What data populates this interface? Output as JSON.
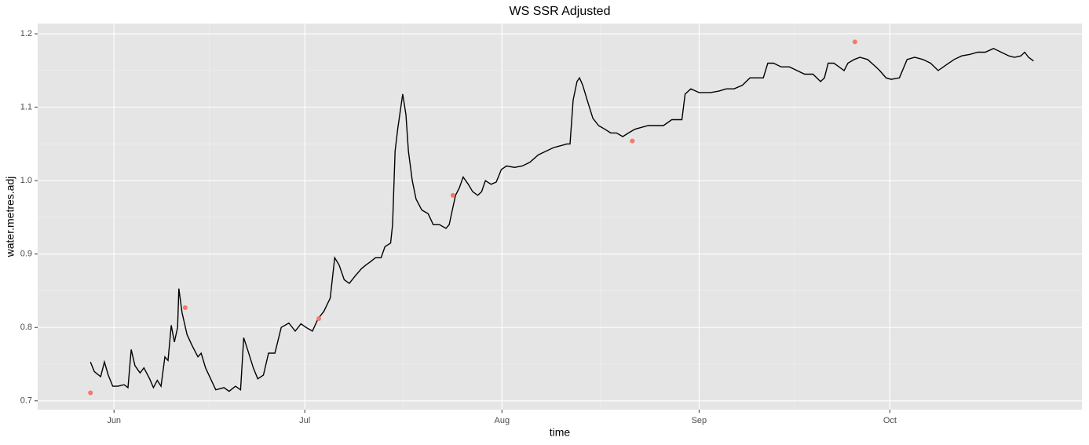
{
  "chart_data": {
    "type": "line",
    "title": "WS SSR Adjusted",
    "x_label": "time",
    "y_label": "water.metres.adj",
    "xlim": [
      -12,
      152.2
    ],
    "ylim": [
      0.688,
      1.214
    ],
    "xticks": [
      {
        "value": 0,
        "label": "Jun"
      },
      {
        "value": 30,
        "label": "Jul"
      },
      {
        "value": 61,
        "label": "Aug"
      },
      {
        "value": 92,
        "label": "Sep"
      },
      {
        "value": 122,
        "label": "Oct"
      }
    ],
    "yticks": [
      0.7,
      0.8,
      0.9,
      {
        "value": 1,
        "label": "1.0"
      },
      1.1,
      1.2
    ],
    "grid": true,
    "minor_grid": true,
    "background": "#e5e5e5",
    "series": [
      {
        "type": "line",
        "color": "#000000",
        "x": [
          -3.7,
          -3.1,
          -2.1,
          -1.5,
          -0.9,
          -0.2,
          0.6,
          1.6,
          2.2,
          2.7,
          3.3,
          4.1,
          4.7,
          5.6,
          6.2,
          6.8,
          7.4,
          8.0,
          8.5,
          9.0,
          9.5,
          10.0,
          10.2,
          10.7,
          11.5,
          12.3,
          13.2,
          13.7,
          14.4,
          15.2,
          16.0,
          17.3,
          18.1,
          19.1,
          19.9,
          20.4,
          21.0,
          21.9,
          22.6,
          23.5,
          24.3,
          25.3,
          26.3,
          27.5,
          28.5,
          29.4,
          30.2,
          31.2,
          32.1,
          33.0,
          34.0,
          34.7,
          35.4,
          36.2,
          37.0,
          37.9,
          38.9,
          39.6,
          40.4,
          41.1,
          42.0,
          42.6,
          43.5,
          43.8,
          44.2,
          44.6,
          45.1,
          45.4,
          45.9,
          46.3,
          46.9,
          47.5,
          48.4,
          49.4,
          50.2,
          51.2,
          52.2,
          52.7,
          53.2,
          53.7,
          54.3,
          54.9,
          55.7,
          56.4,
          57.2,
          57.8,
          58.4,
          59.3,
          60.1,
          60.9,
          61.7,
          63.0,
          64.2,
          65.4,
          66.7,
          67.9,
          69.1,
          70.4,
          71.2,
          71.7,
          72.2,
          72.8,
          73.2,
          73.7,
          74.4,
          75.3,
          76.2,
          77.2,
          78.1,
          79.0,
          80.0,
          80.9,
          81.9,
          82.7,
          84.0,
          85.2,
          86.4,
          87.7,
          89.3,
          89.8,
          90.7,
          92.0,
          93.8,
          95.1,
          96.3,
          97.5,
          98.8,
          100.0,
          101.2,
          102.1,
          102.8,
          103.7,
          104.9,
          106.2,
          107.4,
          108.6,
          109.9,
          111.1,
          111.7,
          112.3,
          113.2,
          114.0,
          114.8,
          115.4,
          116.4,
          117.3,
          118.5,
          119.8,
          120.4,
          121.4,
          122.2,
          123.5,
          124.7,
          125.9,
          127.2,
          128.4,
          129.6,
          130.9,
          132.1,
          133.3,
          134.6,
          135.8,
          137.0,
          138.3,
          139.5,
          140.7,
          141.6,
          142.6,
          143.2,
          143.8,
          144.6
        ],
        "values": [
          0.753,
          0.74,
          0.733,
          0.753,
          0.735,
          0.72,
          0.72,
          0.722,
          0.718,
          0.77,
          0.748,
          0.738,
          0.745,
          0.73,
          0.718,
          0.728,
          0.72,
          0.76,
          0.755,
          0.803,
          0.78,
          0.8,
          0.853,
          0.82,
          0.79,
          0.775,
          0.76,
          0.765,
          0.745,
          0.73,
          0.715,
          0.718,
          0.713,
          0.72,
          0.715,
          0.786,
          0.77,
          0.745,
          0.73,
          0.735,
          0.765,
          0.765,
          0.8,
          0.806,
          0.795,
          0.805,
          0.8,
          0.795,
          0.812,
          0.822,
          0.84,
          0.895,
          0.885,
          0.865,
          0.86,
          0.87,
          0.88,
          0.885,
          0.89,
          0.895,
          0.895,
          0.91,
          0.915,
          0.94,
          1.04,
          1.07,
          1.1,
          1.118,
          1.09,
          1.04,
          1.0,
          0.975,
          0.96,
          0.955,
          0.94,
          0.94,
          0.935,
          0.94,
          0.96,
          0.98,
          0.99,
          1.005,
          0.995,
          0.985,
          0.98,
          0.985,
          1.0,
          0.995,
          0.998,
          1.015,
          1.02,
          1.018,
          1.02,
          1.025,
          1.035,
          1.04,
          1.045,
          1.048,
          1.05,
          1.05,
          1.11,
          1.135,
          1.14,
          1.13,
          1.11,
          1.085,
          1.075,
          1.07,
          1.065,
          1.065,
          1.06,
          1.065,
          1.07,
          1.072,
          1.075,
          1.075,
          1.075,
          1.083,
          1.083,
          1.118,
          1.125,
          1.12,
          1.12,
          1.122,
          1.125,
          1.125,
          1.13,
          1.14,
          1.14,
          1.14,
          1.16,
          1.16,
          1.155,
          1.155,
          1.15,
          1.145,
          1.145,
          1.135,
          1.14,
          1.16,
          1.16,
          1.155,
          1.15,
          1.16,
          1.165,
          1.168,
          1.165,
          1.155,
          1.15,
          1.14,
          1.138,
          1.14,
          1.165,
          1.168,
          1.165,
          1.16,
          1.15,
          1.158,
          1.165,
          1.17,
          1.172,
          1.175,
          1.175,
          1.18,
          1.175,
          1.17,
          1.168,
          1.17,
          1.175,
          1.168,
          1.163
        ]
      },
      {
        "type": "scatter",
        "color": "#f8766d",
        "x": [
          -3.7,
          11.2,
          32.2,
          53.3,
          81.5,
          116.5
        ],
        "values": [
          0.711,
          0.827,
          0.812,
          0.98,
          1.054,
          1.189
        ]
      }
    ]
  }
}
